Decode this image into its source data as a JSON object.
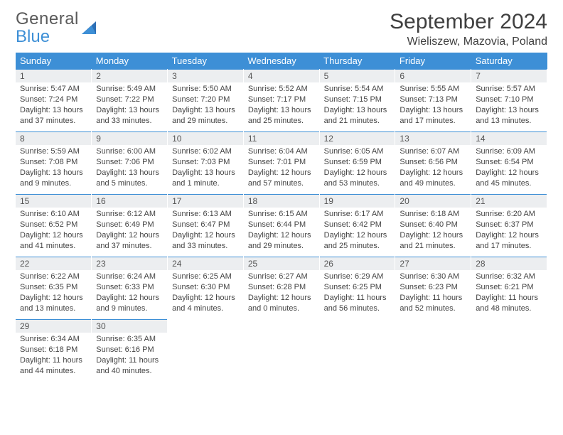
{
  "logo": {
    "line1": "General",
    "line2": "Blue"
  },
  "title": "September 2024",
  "location": "Wieliszew, Mazovia, Poland",
  "header_bg": "#3d8fd6",
  "daybar_bg": "#eceef0",
  "border_color": "#3d8fd6",
  "weekdays": [
    "Sunday",
    "Monday",
    "Tuesday",
    "Wednesday",
    "Thursday",
    "Friday",
    "Saturday"
  ],
  "weeks": [
    [
      {
        "n": "1",
        "sr": "Sunrise: 5:47 AM",
        "ss": "Sunset: 7:24 PM",
        "dl1": "Daylight: 13 hours",
        "dl2": "and 37 minutes."
      },
      {
        "n": "2",
        "sr": "Sunrise: 5:49 AM",
        "ss": "Sunset: 7:22 PM",
        "dl1": "Daylight: 13 hours",
        "dl2": "and 33 minutes."
      },
      {
        "n": "3",
        "sr": "Sunrise: 5:50 AM",
        "ss": "Sunset: 7:20 PM",
        "dl1": "Daylight: 13 hours",
        "dl2": "and 29 minutes."
      },
      {
        "n": "4",
        "sr": "Sunrise: 5:52 AM",
        "ss": "Sunset: 7:17 PM",
        "dl1": "Daylight: 13 hours",
        "dl2": "and 25 minutes."
      },
      {
        "n": "5",
        "sr": "Sunrise: 5:54 AM",
        "ss": "Sunset: 7:15 PM",
        "dl1": "Daylight: 13 hours",
        "dl2": "and 21 minutes."
      },
      {
        "n": "6",
        "sr": "Sunrise: 5:55 AM",
        "ss": "Sunset: 7:13 PM",
        "dl1": "Daylight: 13 hours",
        "dl2": "and 17 minutes."
      },
      {
        "n": "7",
        "sr": "Sunrise: 5:57 AM",
        "ss": "Sunset: 7:10 PM",
        "dl1": "Daylight: 13 hours",
        "dl2": "and 13 minutes."
      }
    ],
    [
      {
        "n": "8",
        "sr": "Sunrise: 5:59 AM",
        "ss": "Sunset: 7:08 PM",
        "dl1": "Daylight: 13 hours",
        "dl2": "and 9 minutes."
      },
      {
        "n": "9",
        "sr": "Sunrise: 6:00 AM",
        "ss": "Sunset: 7:06 PM",
        "dl1": "Daylight: 13 hours",
        "dl2": "and 5 minutes."
      },
      {
        "n": "10",
        "sr": "Sunrise: 6:02 AM",
        "ss": "Sunset: 7:03 PM",
        "dl1": "Daylight: 13 hours",
        "dl2": "and 1 minute."
      },
      {
        "n": "11",
        "sr": "Sunrise: 6:04 AM",
        "ss": "Sunset: 7:01 PM",
        "dl1": "Daylight: 12 hours",
        "dl2": "and 57 minutes."
      },
      {
        "n": "12",
        "sr": "Sunrise: 6:05 AM",
        "ss": "Sunset: 6:59 PM",
        "dl1": "Daylight: 12 hours",
        "dl2": "and 53 minutes."
      },
      {
        "n": "13",
        "sr": "Sunrise: 6:07 AM",
        "ss": "Sunset: 6:56 PM",
        "dl1": "Daylight: 12 hours",
        "dl2": "and 49 minutes."
      },
      {
        "n": "14",
        "sr": "Sunrise: 6:09 AM",
        "ss": "Sunset: 6:54 PM",
        "dl1": "Daylight: 12 hours",
        "dl2": "and 45 minutes."
      }
    ],
    [
      {
        "n": "15",
        "sr": "Sunrise: 6:10 AM",
        "ss": "Sunset: 6:52 PM",
        "dl1": "Daylight: 12 hours",
        "dl2": "and 41 minutes."
      },
      {
        "n": "16",
        "sr": "Sunrise: 6:12 AM",
        "ss": "Sunset: 6:49 PM",
        "dl1": "Daylight: 12 hours",
        "dl2": "and 37 minutes."
      },
      {
        "n": "17",
        "sr": "Sunrise: 6:13 AM",
        "ss": "Sunset: 6:47 PM",
        "dl1": "Daylight: 12 hours",
        "dl2": "and 33 minutes."
      },
      {
        "n": "18",
        "sr": "Sunrise: 6:15 AM",
        "ss": "Sunset: 6:44 PM",
        "dl1": "Daylight: 12 hours",
        "dl2": "and 29 minutes."
      },
      {
        "n": "19",
        "sr": "Sunrise: 6:17 AM",
        "ss": "Sunset: 6:42 PM",
        "dl1": "Daylight: 12 hours",
        "dl2": "and 25 minutes."
      },
      {
        "n": "20",
        "sr": "Sunrise: 6:18 AM",
        "ss": "Sunset: 6:40 PM",
        "dl1": "Daylight: 12 hours",
        "dl2": "and 21 minutes."
      },
      {
        "n": "21",
        "sr": "Sunrise: 6:20 AM",
        "ss": "Sunset: 6:37 PM",
        "dl1": "Daylight: 12 hours",
        "dl2": "and 17 minutes."
      }
    ],
    [
      {
        "n": "22",
        "sr": "Sunrise: 6:22 AM",
        "ss": "Sunset: 6:35 PM",
        "dl1": "Daylight: 12 hours",
        "dl2": "and 13 minutes."
      },
      {
        "n": "23",
        "sr": "Sunrise: 6:24 AM",
        "ss": "Sunset: 6:33 PM",
        "dl1": "Daylight: 12 hours",
        "dl2": "and 9 minutes."
      },
      {
        "n": "24",
        "sr": "Sunrise: 6:25 AM",
        "ss": "Sunset: 6:30 PM",
        "dl1": "Daylight: 12 hours",
        "dl2": "and 4 minutes."
      },
      {
        "n": "25",
        "sr": "Sunrise: 6:27 AM",
        "ss": "Sunset: 6:28 PM",
        "dl1": "Daylight: 12 hours",
        "dl2": "and 0 minutes."
      },
      {
        "n": "26",
        "sr": "Sunrise: 6:29 AM",
        "ss": "Sunset: 6:25 PM",
        "dl1": "Daylight: 11 hours",
        "dl2": "and 56 minutes."
      },
      {
        "n": "27",
        "sr": "Sunrise: 6:30 AM",
        "ss": "Sunset: 6:23 PM",
        "dl1": "Daylight: 11 hours",
        "dl2": "and 52 minutes."
      },
      {
        "n": "28",
        "sr": "Sunrise: 6:32 AM",
        "ss": "Sunset: 6:21 PM",
        "dl1": "Daylight: 11 hours",
        "dl2": "and 48 minutes."
      }
    ],
    [
      {
        "n": "29",
        "sr": "Sunrise: 6:34 AM",
        "ss": "Sunset: 6:18 PM",
        "dl1": "Daylight: 11 hours",
        "dl2": "and 44 minutes."
      },
      {
        "n": "30",
        "sr": "Sunrise: 6:35 AM",
        "ss": "Sunset: 6:16 PM",
        "dl1": "Daylight: 11 hours",
        "dl2": "and 40 minutes."
      },
      null,
      null,
      null,
      null,
      null
    ]
  ]
}
